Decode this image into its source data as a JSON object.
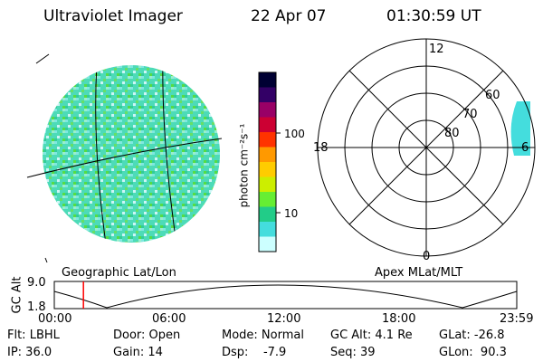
{
  "header": {
    "instrument": "Ultraviolet Imager",
    "date": "22 Apr 07",
    "time": "01:30:59 UT"
  },
  "colorbar": {
    "unit_label": "photon cm⁻²s⁻¹",
    "ticks": [
      "100",
      "10"
    ],
    "colors": [
      "#000033",
      "#330066",
      "#990066",
      "#cc0033",
      "#ff3300",
      "#ff9900",
      "#ffcc00",
      "#ccee00",
      "#66ee33",
      "#22cc88",
      "#44dddd",
      "#ccffff"
    ]
  },
  "left_panel": {
    "label": "Geographic Lat/Lon"
  },
  "right_panel": {
    "label": "Apex  MLat/MLT",
    "mlt_labels": {
      "top": "12",
      "left": "18",
      "right": "6",
      "bottom": "0"
    },
    "lat_labels": [
      "60",
      "70",
      "80"
    ]
  },
  "timeline": {
    "ylabel": "GC Alt",
    "yticks": [
      "9.0",
      "1.8"
    ],
    "xticks": [
      "00:00",
      "06:00",
      "12:00",
      "18:00",
      "23:59"
    ],
    "current_time_fraction": 0.063,
    "cursor_color": "#ff0000"
  },
  "footer": {
    "row1": [
      "Flt: LBHL",
      "Door: Open",
      "Mode: Normal",
      "GC Alt: 4.1 Re",
      "GLat: -26.8"
    ],
    "row2": [
      "IP: 36.0",
      "Gain: 14",
      "Dsp:    -7.9",
      "Seq: 39",
      "GLon:  90.3"
    ]
  }
}
